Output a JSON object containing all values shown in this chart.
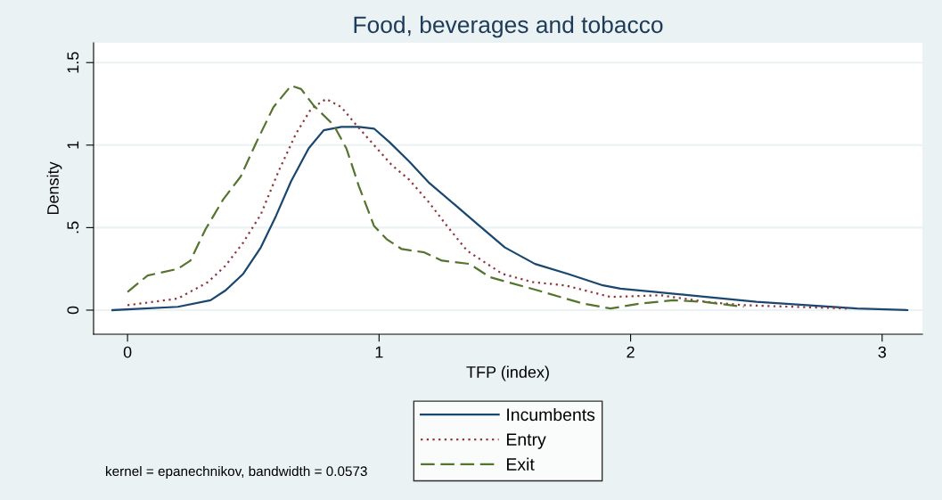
{
  "chart_data": {
    "type": "line",
    "title": "Food, beverages and tobacco",
    "xlabel": "TFP (index)",
    "ylabel": "Density",
    "series": [
      {
        "name": "Incumbents",
        "color": "#1a476f",
        "line_style": "solid",
        "x": [
          -0.06,
          0.2,
          0.33,
          0.39,
          0.46,
          0.53,
          0.59,
          0.65,
          0.72,
          0.78,
          0.85,
          0.92,
          0.98,
          1.04,
          1.12,
          1.2,
          1.3,
          1.4,
          1.5,
          1.62,
          1.75,
          1.89,
          1.96,
          2.1,
          2.3,
          2.5,
          2.7,
          2.9,
          3.1
        ],
        "values": [
          0,
          0.02,
          0.06,
          0.12,
          0.22,
          0.38,
          0.57,
          0.78,
          0.98,
          1.09,
          1.11,
          1.11,
          1.1,
          1.02,
          0.9,
          0.77,
          0.64,
          0.51,
          0.38,
          0.28,
          0.22,
          0.15,
          0.13,
          0.11,
          0.08,
          0.05,
          0.03,
          0.01,
          0
        ]
      },
      {
        "name": "Entry",
        "color": "#90353b",
        "line_style": "dotted",
        "x": [
          0,
          0.2,
          0.32,
          0.39,
          0.46,
          0.53,
          0.6,
          0.67,
          0.73,
          0.79,
          0.85,
          0.91,
          0.98,
          1.05,
          1.12,
          1.2,
          1.27,
          1.35,
          1.49,
          1.61,
          1.74,
          1.92,
          2.12,
          2.3,
          2.45,
          2.65,
          2.86
        ],
        "values": [
          0.03,
          0.07,
          0.17,
          0.27,
          0.41,
          0.58,
          0.84,
          1.07,
          1.22,
          1.28,
          1.23,
          1.12,
          1.0,
          0.88,
          0.79,
          0.65,
          0.51,
          0.36,
          0.22,
          0.17,
          0.15,
          0.08,
          0.09,
          0.05,
          0.03,
          0.02,
          0.01
        ]
      },
      {
        "name": "Exit",
        "color": "#55752f",
        "line_style": "dashed",
        "x": [
          0,
          0.08,
          0.2,
          0.25,
          0.31,
          0.38,
          0.45,
          0.51,
          0.58,
          0.65,
          0.69,
          0.74,
          0.82,
          0.87,
          0.92,
          0.98,
          1.03,
          1.09,
          1.18,
          1.25,
          1.36,
          1.44,
          1.63,
          1.81,
          1.92,
          2.04,
          2.17,
          2.29,
          2.45
        ],
        "values": [
          0.11,
          0.21,
          0.25,
          0.3,
          0.49,
          0.67,
          0.81,
          1.01,
          1.23,
          1.36,
          1.34,
          1.24,
          1.12,
          0.98,
          0.75,
          0.51,
          0.43,
          0.37,
          0.35,
          0.3,
          0.28,
          0.2,
          0.12,
          0.04,
          0.01,
          0.04,
          0.06,
          0.05,
          0.02
        ]
      }
    ],
    "xlim": [
      -0.135,
      3.16
    ],
    "ylim": [
      -0.146,
      1.62
    ],
    "xticks": [
      0,
      1,
      2,
      3
    ],
    "yticks": [
      0,
      {
        "value": 0.5,
        "label": ".5"
      },
      1,
      1.5
    ],
    "grid": "y",
    "legend": "bottom",
    "annotations": [
      "kernel = epanechnikov, bandwidth = 0.0573"
    ]
  }
}
